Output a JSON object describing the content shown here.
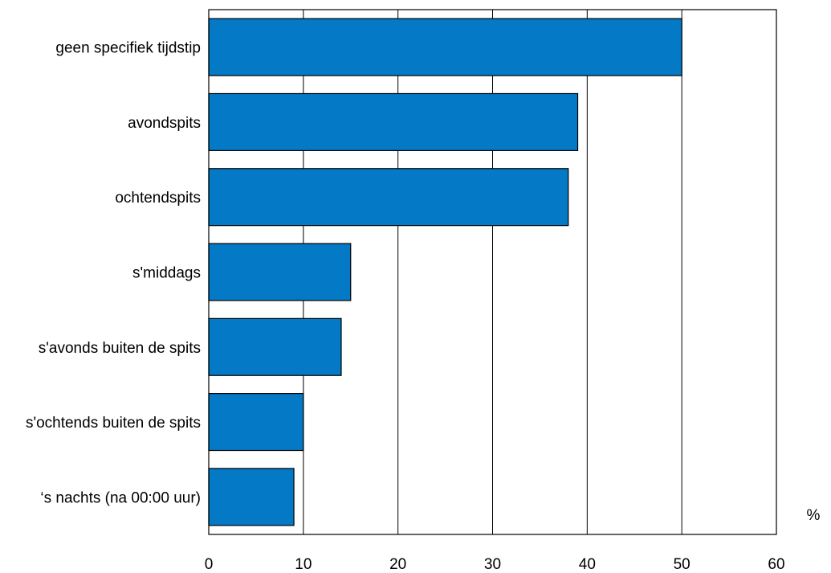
{
  "chart_data": {
    "type": "bar",
    "orientation": "horizontal",
    "categories": [
      "geen specifiek tijdstip",
      "avondspits",
      "ochtendspits",
      "s'middags",
      "s'avonds buiten de spits",
      "s'ochtends buiten de spits",
      "‘s nachts (na 00:00 uur)"
    ],
    "values": [
      50,
      39,
      38,
      15,
      14,
      10,
      9
    ],
    "title": "",
    "xlabel": "%",
    "ylabel": "",
    "xlim": [
      0,
      60
    ],
    "xticks": [
      "0",
      "10",
      "20",
      "30",
      "40",
      "50",
      "60"
    ],
    "grid": "vertical",
    "legend": "none",
    "bar_color": "#0479C5"
  }
}
